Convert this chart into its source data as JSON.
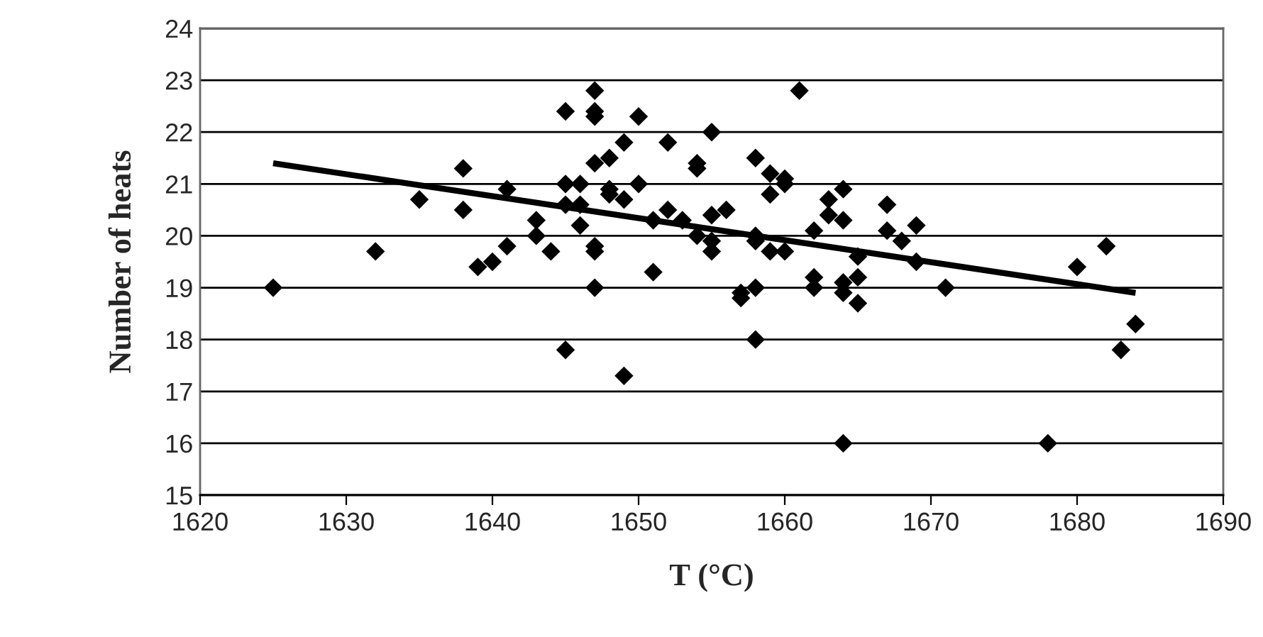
{
  "chart_data": {
    "type": "scatter",
    "xlabel": "T (°C)",
    "ylabel": "Number of heats",
    "xlim": [
      1620,
      1690
    ],
    "xticks": [
      1620,
      1630,
      1640,
      1650,
      1660,
      1670,
      1680,
      1690
    ],
    "ylim": [
      15,
      24
    ],
    "yticks": [
      15,
      16,
      17,
      18,
      19,
      20,
      21,
      22,
      23,
      24
    ],
    "grid": "y",
    "legend": false,
    "series": [
      {
        "marker": "diamond",
        "color": "#000000",
        "x": [
          1625,
          1632,
          1635,
          1638,
          1638,
          1639,
          1640,
          1641,
          1641,
          1643,
          1643,
          1644,
          1645,
          1645,
          1645,
          1645,
          1646,
          1646,
          1646,
          1647,
          1647,
          1647,
          1647,
          1647,
          1647,
          1647,
          1648,
          1648,
          1648,
          1649,
          1649,
          1649,
          1650,
          1650,
          1651,
          1651,
          1652,
          1652,
          1653,
          1654,
          1654,
          1654,
          1655,
          1655,
          1655,
          1655,
          1656,
          1657,
          1657,
          1658,
          1658,
          1658,
          1658,
          1658,
          1659,
          1659,
          1659,
          1660,
          1660,
          1660,
          1661,
          1662,
          1662,
          1662,
          1663,
          1663,
          1664,
          1664,
          1664,
          1664,
          1664,
          1665,
          1665,
          1665,
          1667,
          1667,
          1668,
          1669,
          1669,
          1671,
          1678,
          1680,
          1682,
          1683,
          1684
        ],
        "values": [
          19.0,
          19.7,
          20.7,
          21.3,
          20.5,
          19.4,
          19.5,
          20.9,
          19.8,
          20.3,
          20.0,
          19.7,
          22.4,
          21.0,
          20.6,
          17.8,
          20.6,
          20.2,
          21.0,
          22.8,
          22.4,
          22.3,
          21.4,
          19.8,
          19.7,
          19.0,
          21.5,
          20.9,
          20.8,
          21.8,
          20.7,
          17.3,
          22.3,
          21.0,
          20.3,
          19.3,
          21.8,
          20.5,
          20.3,
          21.4,
          21.3,
          20.0,
          22.0,
          20.4,
          19.9,
          19.7,
          20.5,
          18.8,
          18.9,
          21.5,
          20.0,
          19.9,
          19.0,
          18.0,
          21.2,
          20.8,
          19.7,
          21.1,
          21.0,
          19.7,
          22.8,
          20.1,
          19.2,
          19.0,
          20.7,
          20.4,
          20.9,
          20.3,
          19.1,
          18.9,
          16.0,
          19.6,
          19.2,
          18.7,
          20.6,
          20.1,
          19.9,
          20.2,
          19.5,
          19.0,
          16.0,
          19.4,
          19.8,
          17.8,
          18.3
        ]
      },
      {
        "type": "line",
        "marker": "none",
        "color": "#000000",
        "x": [
          1625,
          1684
        ],
        "values": [
          21.4,
          18.9
        ]
      }
    ]
  }
}
